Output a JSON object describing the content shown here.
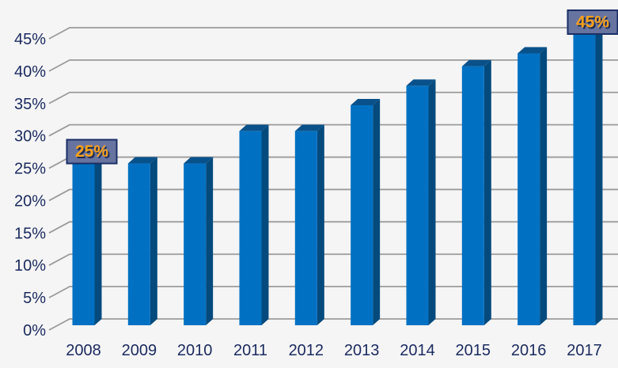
{
  "chart_data": {
    "type": "bar",
    "style": "3d-column",
    "title": "",
    "xlabel": "",
    "ylabel": "",
    "categories": [
      "2008",
      "2009",
      "2010",
      "2011",
      "2012",
      "2013",
      "2014",
      "2015",
      "2016",
      "2017"
    ],
    "values": [
      25,
      25,
      25,
      30,
      30,
      34,
      37,
      40,
      42,
      45
    ],
    "unit": "%",
    "ylim": [
      0,
      45
    ],
    "ytick_step": 5,
    "ytick_labels": [
      "0%",
      "5%",
      "10%",
      "15%",
      "20%",
      "25%",
      "30%",
      "35%",
      "40%",
      "45%"
    ],
    "grid": true,
    "legend": false,
    "callouts": [
      {
        "category": "2008",
        "label": "25%"
      },
      {
        "category": "2017",
        "label": "45%"
      }
    ],
    "colors": {
      "background": "#f5f5f6",
      "gridline": "#9b9b9b",
      "axis_text": "#1b2a5e",
      "bar_front": "#0071c2",
      "bar_side": "#054a7d",
      "bar_top": "#09518a",
      "callout_fill": "#6874a0",
      "callout_border": "#1b2f66",
      "callout_text": "#f9a11b",
      "callout_text_shadow": "#1e2a50"
    }
  }
}
